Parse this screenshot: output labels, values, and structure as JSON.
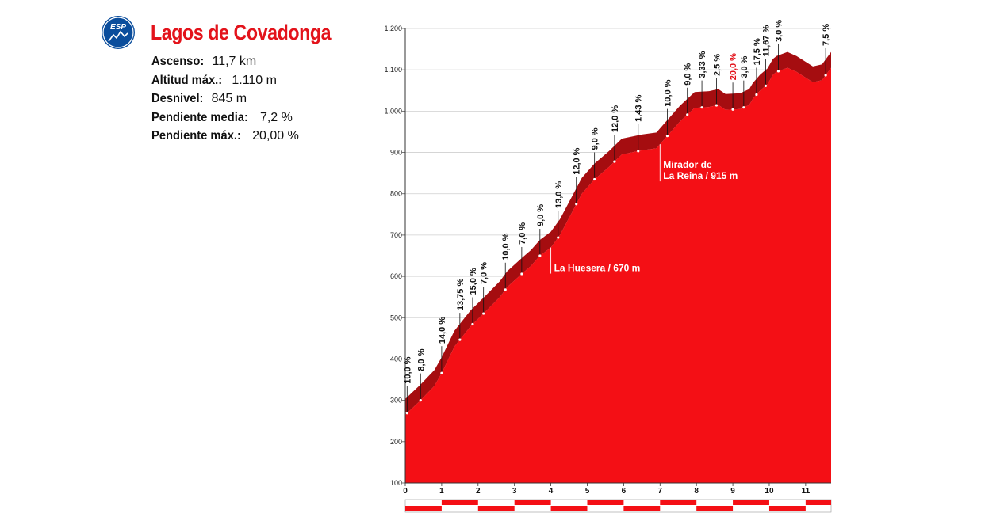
{
  "badge": {
    "code": "ESP",
    "icon": "mountain-icon",
    "color": "#0a4d9c"
  },
  "climb": {
    "name": "Lagos de Covadonga",
    "stats": [
      {
        "label": "Ascenso:",
        "value": "11,7 km"
      },
      {
        "label": "Altitud máx.:",
        "value": "1.110 m"
      },
      {
        "label": "Desnivel:",
        "value": "845 m"
      },
      {
        "label": "Pendiente media:",
        "value": "7,2 %"
      },
      {
        "label": "Pendiente máx.:",
        "value": "20,00 %"
      }
    ]
  },
  "colors": {
    "profile": "#f40f15",
    "band": "#a50d10",
    "accent": "#e3131b"
  },
  "chart_data": {
    "type": "area",
    "xlabel": "",
    "ylabel": "",
    "xlim": [
      0,
      11.7
    ],
    "ylim": [
      100,
      1200
    ],
    "grid": true,
    "y_ticks": [
      100,
      200,
      300,
      400,
      500,
      600,
      700,
      800,
      900,
      1000,
      1100,
      1200
    ],
    "y_tick_labels": [
      "100",
      "200",
      "300",
      "400",
      "500",
      "600",
      "700",
      "800",
      "900",
      "1.000",
      "1.100",
      "1.200"
    ],
    "x_ticks": [
      0,
      1,
      2,
      3,
      4,
      5,
      6,
      7,
      8,
      9,
      10,
      11
    ],
    "x_tick_labels": [
      "0",
      "1",
      "2",
      "3",
      "4",
      "5",
      "6",
      "7",
      "8",
      "9",
      "10",
      "11"
    ],
    "profile": [
      [
        0,
        265
      ],
      [
        0.42,
        300
      ],
      [
        0.8,
        335
      ],
      [
        1.0,
        366
      ],
      [
        1.35,
        430
      ],
      [
        1.8,
        480
      ],
      [
        2.15,
        510
      ],
      [
        2.6,
        550
      ],
      [
        2.8,
        574
      ],
      [
        3.25,
        610
      ],
      [
        3.45,
        625
      ],
      [
        3.7,
        650
      ],
      [
        4.0,
        670
      ],
      [
        4.25,
        700
      ],
      [
        4.55,
        750
      ],
      [
        4.85,
        800
      ],
      [
        5.2,
        835
      ],
      [
        5.6,
        865
      ],
      [
        5.95,
        895
      ],
      [
        6.5,
        905
      ],
      [
        6.9,
        910
      ],
      [
        7.15,
        935
      ],
      [
        7.55,
        975
      ],
      [
        7.95,
        1008
      ],
      [
        8.35,
        1010
      ],
      [
        8.6,
        1015
      ],
      [
        8.8,
        1003
      ],
      [
        9.2,
        1005
      ],
      [
        9.45,
        1015
      ],
      [
        9.55,
        1030
      ],
      [
        9.75,
        1050
      ],
      [
        9.95,
        1065
      ],
      [
        10.1,
        1088
      ],
      [
        10.2,
        1095
      ],
      [
        10.5,
        1105
      ],
      [
        10.75,
        1095
      ],
      [
        11.2,
        1070
      ],
      [
        11.45,
        1075
      ],
      [
        11.7,
        1105
      ]
    ],
    "segments": [
      {
        "x": 0.05,
        "label": "10,0 %"
      },
      {
        "x": 0.42,
        "label": "8,0 %"
      },
      {
        "x": 1.0,
        "label": "14,0 %"
      },
      {
        "x": 1.5,
        "label": "13,75 %"
      },
      {
        "x": 1.85,
        "label": "15,0 %"
      },
      {
        "x": 2.15,
        "label": "7,0 %"
      },
      {
        "x": 2.75,
        "label": "10,0 %"
      },
      {
        "x": 3.2,
        "label": "7,0 %"
      },
      {
        "x": 3.7,
        "label": "9,0 %"
      },
      {
        "x": 4.2,
        "label": "13,0 %"
      },
      {
        "x": 4.7,
        "label": "12,0 %"
      },
      {
        "x": 5.2,
        "label": "9,0 %"
      },
      {
        "x": 5.75,
        "label": "12,0 %"
      },
      {
        "x": 6.4,
        "label": "1,43 %"
      },
      {
        "x": 7.2,
        "label": "10,0 %"
      },
      {
        "x": 7.75,
        "label": "9,0 %"
      },
      {
        "x": 8.15,
        "label": "3,33 %"
      },
      {
        "x": 8.55,
        "label": "2,5 %"
      },
      {
        "x": 9.0,
        "label": "20,0 %",
        "highlight": true
      },
      {
        "x": 9.3,
        "label": "3,0 %"
      },
      {
        "x": 9.65,
        "label": "17,5 %"
      },
      {
        "x": 9.9,
        "label": "11,67 %"
      },
      {
        "x": 10.25,
        "label": "3,0 %"
      },
      {
        "x": 11.55,
        "label": "7,5 %"
      }
    ],
    "annotations": [
      {
        "x": 4.0,
        "lines": [
          "La Huesera / 670 m"
        ]
      },
      {
        "x": 7.0,
        "lines": [
          "Mirador de",
          "La Reina / 915 m"
        ]
      }
    ]
  }
}
